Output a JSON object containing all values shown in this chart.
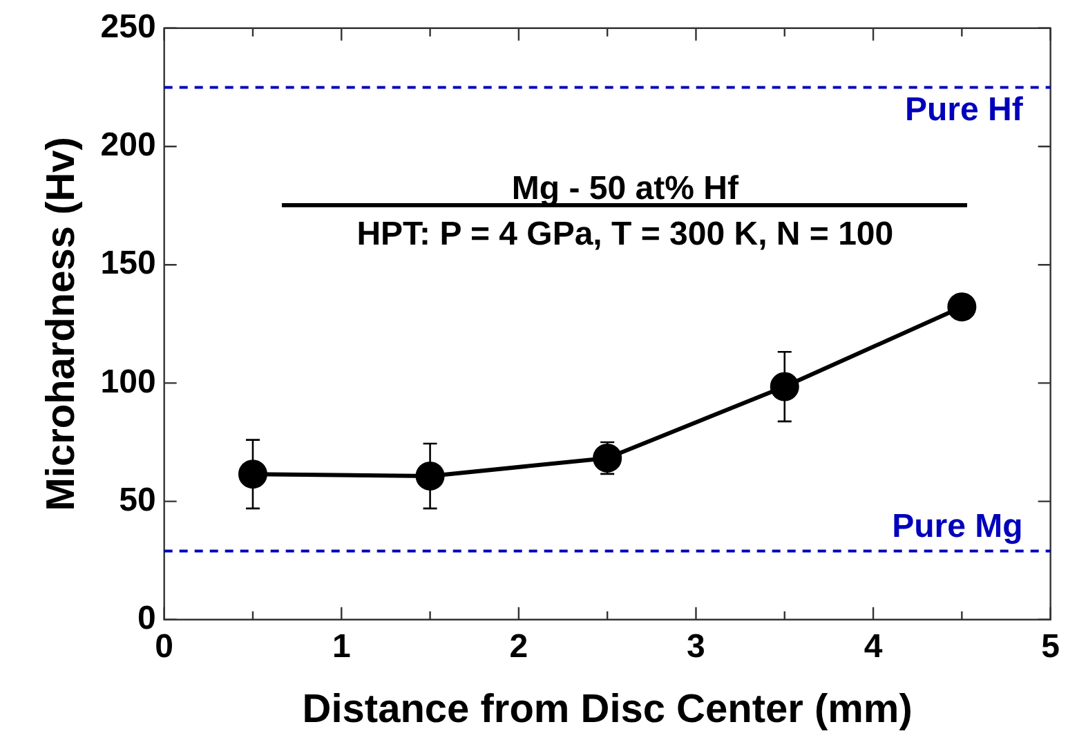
{
  "chart_data": {
    "type": "line",
    "xlabel": "Distance from Disc Center (mm)",
    "ylabel": "Microhardness (Hv)",
    "x": [
      0.5,
      1.5,
      2.5,
      3.5,
      4.5
    ],
    "series": [
      {
        "color": "#000000",
        "values": [
          61.5,
          60.7,
          68.3,
          98.5,
          132.2
        ],
        "errors": [
          14.5,
          13.7,
          6.7,
          14.7,
          5
        ]
      }
    ],
    "xlim": [
      0,
      5
    ],
    "xticks": [
      0,
      {
        "value": 0.5,
        "label": null
      },
      1,
      {
        "value": 1.5,
        "label": null
      },
      2,
      {
        "value": 2.5,
        "label": null
      },
      3,
      {
        "value": 3.5,
        "label": null
      },
      4,
      {
        "value": 4.5,
        "label": null
      },
      5
    ],
    "ylim": [
      0,
      250
    ],
    "yticks": [
      0,
      50,
      100,
      150,
      200,
      250
    ],
    "ref_lines": [
      {
        "axis": "y",
        "value": 225,
        "label": "Pure Hf",
        "color": "#0000bb",
        "line_style": "dashed"
      },
      {
        "axis": "y",
        "value": 29,
        "label": "Pure Mg",
        "color": "#0000bb",
        "line_style": "dashed"
      }
    ],
    "annotations": [
      "Mg - 50 at% Hf",
      "HPT: P = 4 GPa, T = 300 K, N = 100"
    ],
    "marker": "circle",
    "line_style": "solid",
    "grid": false,
    "legend": false
  }
}
